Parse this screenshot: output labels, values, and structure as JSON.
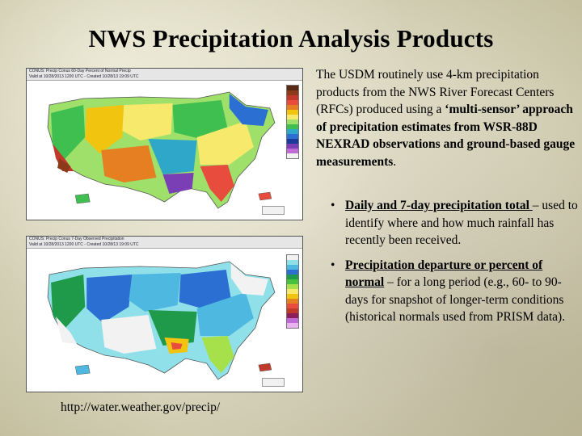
{
  "slide": {
    "title": "NWS Precipitation Analysis Products",
    "intro_plain_1": "The USDM routinely use 4-km precipitation products from the NWS River Forecast Centers (RFCs) produced using a ",
    "intro_bold": "‘multi-sensor’ approach of precipitation estimates from WSR-88D NEXRAD observations and ground-based gauge measurements",
    "intro_plain_2": ".",
    "bullet_symbol": "•",
    "bullets": [
      {
        "heading": "Daily and 7-day precipitation total ",
        "text": "– used to identify where and how much rainfall has recently been received."
      },
      {
        "heading": "Precipitation departure or percent of normal",
        "text": " – for a long period (e.g., 60- to 90- days for snapshot of longer-term conditions (historical normals used from PRISM data)."
      }
    ],
    "source_url": "http://water.weather.gov/precip/"
  },
  "maps": {
    "top": {
      "header_line_1": "CONUS: Precip Conus 60-Day Percent of Normal Precip",
      "header_line_2": "Valid at 10/28/2013 1200 UTC - Created 10/28/13 19:09 UTC",
      "legend_colors": [
        "#5a2a14",
        "#8c3b1a",
        "#c0392b",
        "#e74c3c",
        "#e67e22",
        "#f1c40f",
        "#f7e96b",
        "#9ee06a",
        "#3fbf4f",
        "#2ea7c8",
        "#2a6fd1",
        "#1c3a9a",
        "#7b3fb5",
        "#c06ad6",
        "#f2f2f2"
      ]
    },
    "bottom": {
      "header_line_1": "CONUS: Precip Conus 7-Day Observed Precipitation",
      "header_line_2": "Valid at 10/28/2013 1200 UTC - Created 10/28/13 19:09 UTC",
      "legend_colors": [
        "#f2f2f2",
        "#8fe0e8",
        "#4fb8e0",
        "#2a6fd1",
        "#1f9a4a",
        "#48c23e",
        "#a6e04a",
        "#f7e96b",
        "#f1c40f",
        "#e67e22",
        "#e74c3c",
        "#c0392b",
        "#8c1f5a",
        "#c06ad6",
        "#e8b3ee"
      ]
    }
  }
}
